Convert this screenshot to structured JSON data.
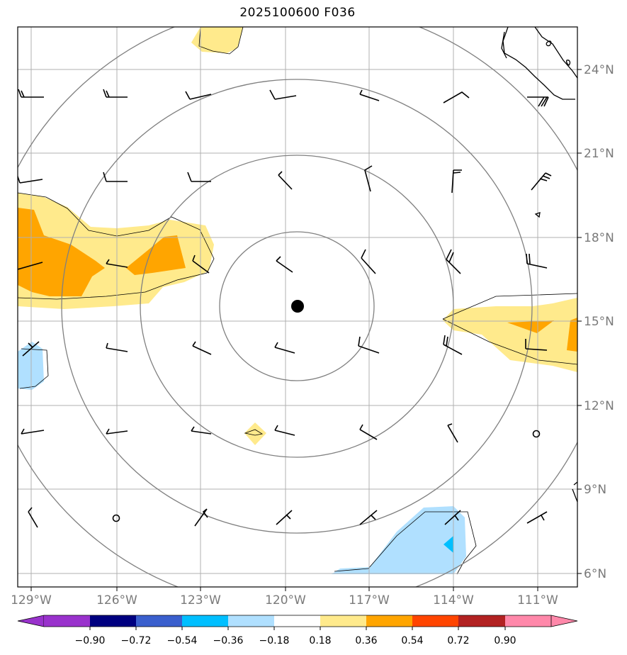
{
  "title": "2025100600 F036",
  "colors": {
    "light_yellow": "#ffea8c",
    "orange": "#ffa500",
    "light_blue": "#b0e0ff",
    "deep_sky_blue": "#00bfff",
    "grid": "#b0b0b0",
    "range_rings": "#808080"
  },
  "map": {
    "lon_min": -130,
    "lon_max": -109,
    "lat_min": 5.4,
    "lat_max": 25.1,
    "center_marker": {
      "lon": -119.6,
      "lat": 15.5,
      "symbol": "filled-circle"
    },
    "lon_ticks": [
      {
        "value": -129,
        "label": "129°W"
      },
      {
        "value": -126,
        "label": "126°W"
      },
      {
        "value": -123,
        "label": "123°W"
      },
      {
        "value": -120,
        "label": "120°W"
      },
      {
        "value": -117,
        "label": "117°W"
      },
      {
        "value": -114,
        "label": "114°W"
      },
      {
        "value": -111,
        "label": "111°W"
      }
    ],
    "lat_ticks": [
      {
        "value": 6,
        "label": "6°N"
      },
      {
        "value": 9,
        "label": "9°N"
      },
      {
        "value": 12,
        "label": "12°N"
      },
      {
        "value": 15,
        "label": "15°N"
      },
      {
        "value": 18,
        "label": "18°N"
      },
      {
        "value": 21,
        "label": "21°N"
      },
      {
        "value": 24,
        "label": "24°N"
      }
    ],
    "range_ring_labels": []
  },
  "colorbar": {
    "ticks": [
      "−0.90",
      "−0.72",
      "−0.54",
      "−0.36",
      "−0.18",
      "0.18",
      "0.36",
      "0.54",
      "0.72",
      "0.90"
    ],
    "colors": [
      "#9932cc",
      "#000080",
      "#3a5fcd",
      "#00bfff",
      "#b0e0ff",
      "#ffffff",
      "#ffea8c",
      "#ffa500",
      "#ff4500",
      "#b22222",
      "#ff88aa"
    ]
  }
}
